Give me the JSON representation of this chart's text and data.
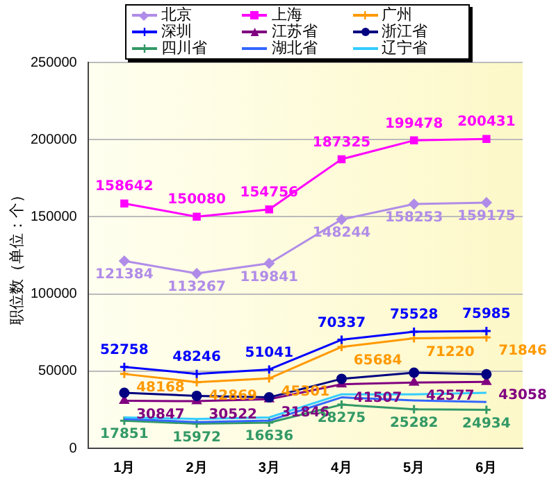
{
  "chart_data": {
    "type": "line",
    "ylabel": "职位数（单位：个）",
    "categories": [
      "1月",
      "2月",
      "3月",
      "4月",
      "5月",
      "6月"
    ],
    "ylim": [
      0,
      250000
    ],
    "yticks": [
      0,
      50000,
      100000,
      150000,
      200000,
      250000
    ],
    "grid": "y",
    "legend": "top",
    "series": [
      {
        "name": "北京",
        "color": "#b08ce8",
        "marker": "diamond",
        "values": [
          121384,
          113267,
          119841,
          148244,
          158253,
          159175
        ],
        "value_labels": [
          "121384",
          "113267",
          "119841",
          "148244",
          "158253",
          "159175"
        ]
      },
      {
        "name": "上海",
        "color": "#ff00ff",
        "marker": "square",
        "values": [
          158642,
          150080,
          154756,
          187325,
          199478,
          200431
        ],
        "value_labels": [
          "158642",
          "150080",
          "154756",
          "187325",
          "199478",
          "200431"
        ]
      },
      {
        "name": "广州",
        "color": "#ff9900",
        "marker": "cross",
        "values": [
          48168,
          42869,
          45301,
          65684,
          71220,
          71846
        ],
        "value_labels": [
          "48168",
          "42869",
          "45301",
          "65684",
          "71220",
          "71846"
        ]
      },
      {
        "name": "深圳",
        "color": "#0000ff",
        "marker": "cross",
        "values": [
          52758,
          48246,
          51041,
          70337,
          75528,
          75985
        ],
        "value_labels": [
          "52758",
          "48246",
          "51041",
          "70337",
          "75528",
          "75985"
        ]
      },
      {
        "name": "江苏省",
        "color": "#800080",
        "marker": "triangle",
        "values": [
          30847,
          30522,
          31846,
          41507,
          42577,
          43058
        ],
        "value_labels": [
          "30847",
          "30522",
          "31846",
          "41507",
          "42577",
          "43058"
        ]
      },
      {
        "name": "浙江省",
        "color": "#000080",
        "marker": "circle",
        "values": [
          36000,
          34000,
          33000,
          45000,
          49000,
          48000
        ]
      },
      {
        "name": "四川省",
        "color": "#339966",
        "marker": "cross",
        "values": [
          17851,
          15972,
          16636,
          28275,
          25282,
          24934
        ],
        "value_labels": [
          "17851",
          "15972",
          "16636",
          "28275",
          "25282",
          "24934"
        ]
      },
      {
        "name": "湖北省",
        "color": "#3366ff",
        "marker": "none",
        "values": [
          19000,
          17000,
          18000,
          33000,
          31000,
          30000
        ]
      },
      {
        "name": "辽宁省",
        "color": "#33ccff",
        "marker": "none",
        "values": [
          20000,
          19000,
          20000,
          35000,
          35000,
          36000
        ]
      }
    ]
  }
}
